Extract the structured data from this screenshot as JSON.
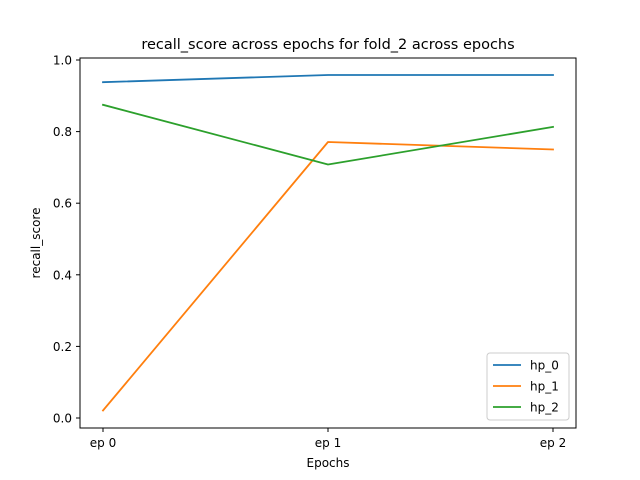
{
  "chart_data": {
    "type": "line",
    "title": "recall_score across epochs for fold_2 across epochs",
    "xlabel": "Epochs",
    "ylabel": "recall_score",
    "categories": [
      "ep 0",
      "ep 1",
      "ep 2"
    ],
    "ylim": [
      -0.02,
      1.0
    ],
    "yticks": [
      0.0,
      0.2,
      0.4,
      0.6,
      0.8,
      1.0
    ],
    "ytick_labels": [
      "0.0",
      "0.2",
      "0.4",
      "0.6",
      "0.8",
      "1.0"
    ],
    "grid": false,
    "legend_position": "bottom-right",
    "series": [
      {
        "name": "hp_0",
        "color": "#1f77b4",
        "values": [
          0.938,
          0.958,
          0.958
        ]
      },
      {
        "name": "hp_1",
        "color": "#ff7f0e",
        "values": [
          0.021,
          0.771,
          0.75
        ]
      },
      {
        "name": "hp_2",
        "color": "#2ca02c",
        "values": [
          0.875,
          0.708,
          0.813
        ]
      }
    ]
  }
}
